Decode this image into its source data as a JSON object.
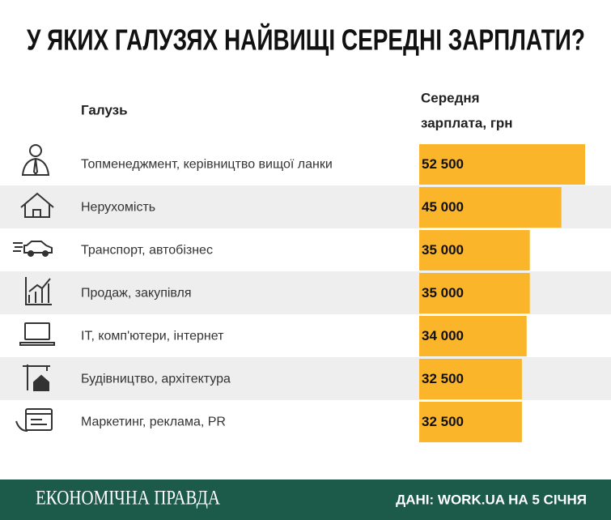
{
  "chart_data": {
    "type": "bar",
    "title": "У ЯКИХ ГАЛУЗЯХ НАЙВИЩІ СЕРЕДНІ ЗАРПЛАТИ?",
    "category_header": "Галузь",
    "value_header": [
      "Середня",
      "зарплата, грн"
    ],
    "categories": [
      "Топменеджмент, керівництво вищої ланки",
      "Нерухомість",
      "Транспорт, автобізнес",
      "Продаж, закупівля",
      "ІТ, комп'ютери, інтернет",
      "Будівництво, архітектура",
      "Маркетинг, реклама, PR"
    ],
    "values": [
      52500,
      45000,
      35000,
      35000,
      34000,
      32500,
      32500
    ],
    "value_labels": [
      "52 500",
      "45 000",
      "35 000",
      "35 000",
      "34 000",
      "32 500",
      "32 500"
    ],
    "color": "#fbb52b",
    "brand": "ЕКОНОМІЧНА ПРАВДА",
    "source": "ДАНІ: WORK.UA НА 5 СІЧНЯ"
  }
}
